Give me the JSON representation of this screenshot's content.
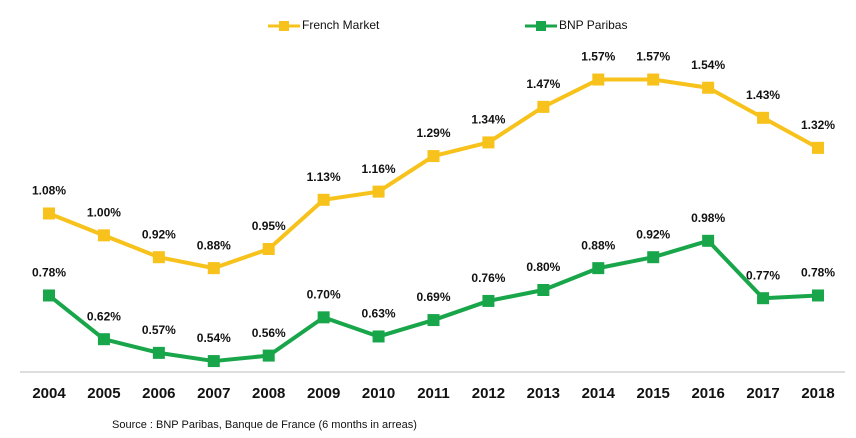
{
  "chart_data": {
    "type": "line",
    "categories": [
      "2004",
      "2005",
      "2006",
      "2007",
      "2008",
      "2009",
      "2010",
      "2011",
      "2012",
      "2013",
      "2014",
      "2015",
      "2016",
      "2017",
      "2018"
    ],
    "series": [
      {
        "name": "French Market",
        "color": "#f7c21b",
        "values": [
          1.08,
          1.0,
          0.92,
          0.88,
          0.95,
          1.13,
          1.16,
          1.29,
          1.34,
          1.47,
          1.57,
          1.57,
          1.54,
          1.43,
          1.32
        ],
        "value_labels": [
          "1.08%",
          "1.00%",
          "0.92%",
          "0.88%",
          "0.95%",
          "1.13%",
          "1.16%",
          "1.29%",
          "1.34%",
          "1.47%",
          "1.57%",
          "1.57%",
          "1.54%",
          "1.43%",
          "1.32%"
        ]
      },
      {
        "name": "BNP Paribas",
        "color": "#19a64b",
        "values": [
          0.78,
          0.62,
          0.57,
          0.54,
          0.56,
          0.7,
          0.63,
          0.69,
          0.76,
          0.8,
          0.88,
          0.92,
          0.98,
          0.77,
          0.78
        ],
        "value_labels": [
          "0.78%",
          "0.62%",
          "0.57%",
          "0.54%",
          "0.56%",
          "0.70%",
          "0.63%",
          "0.69%",
          "0.76%",
          "0.80%",
          "0.88%",
          "0.92%",
          "0.98%",
          "0.77%",
          "0.78%"
        ]
      }
    ],
    "ylim": [
      0.5,
      1.7
    ],
    "source": "Source : BNP Paribas, Banque de France (6 months in arreas)"
  }
}
